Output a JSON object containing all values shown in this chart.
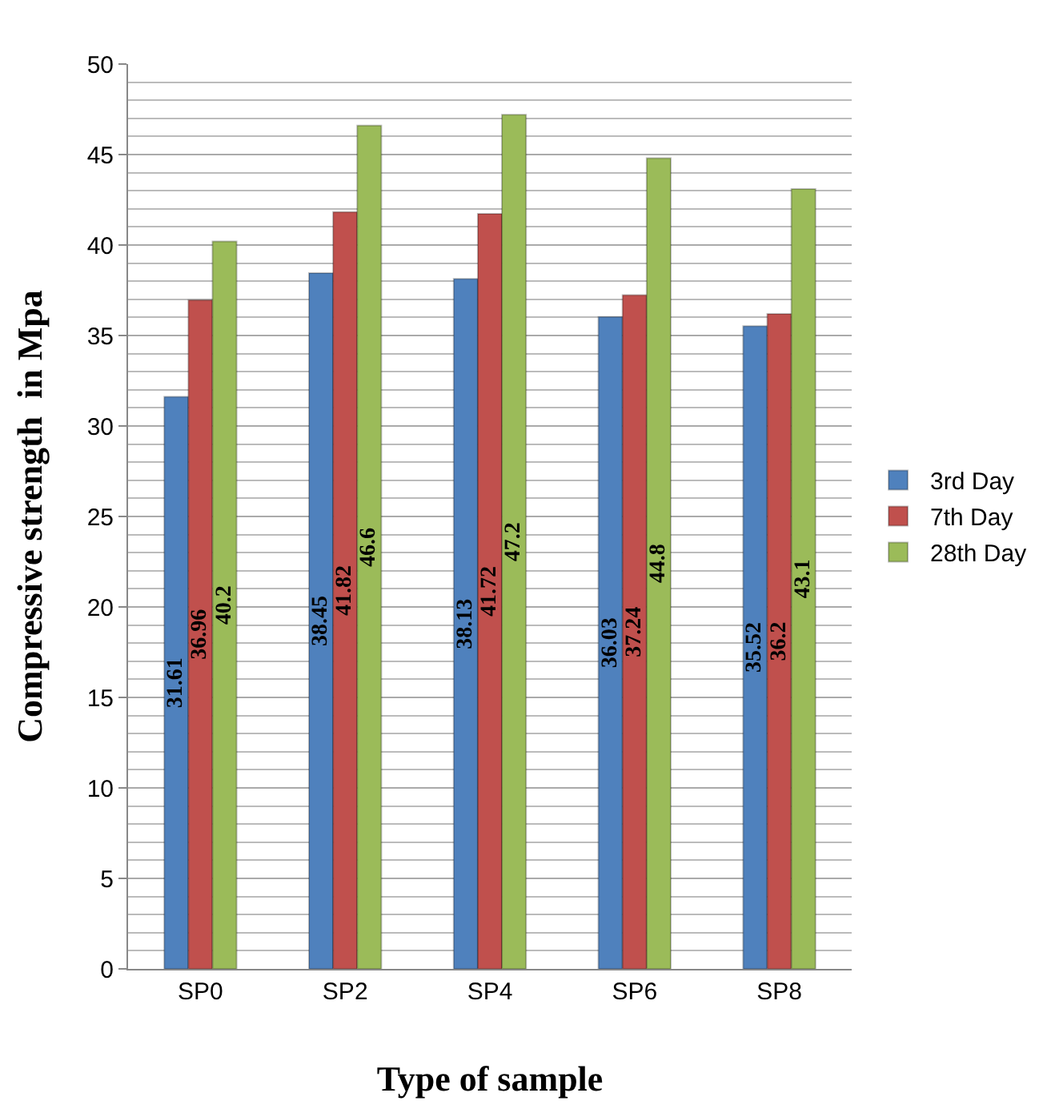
{
  "chart_data": {
    "type": "bar",
    "xlabel": "Type of sample",
    "ylabel": "Compressive strength  in Mpa",
    "categories": [
      "SP0",
      "SP2",
      "SP4",
      "SP6",
      "SP8"
    ],
    "series": [
      {
        "name": "3rd Day",
        "color": "#4f81bd",
        "values": [
          31.61,
          38.45,
          38.13,
          36.03,
          35.52
        ]
      },
      {
        "name": "7th Day",
        "color": "#c0504d",
        "values": [
          36.96,
          41.82,
          41.72,
          37.24,
          36.2
        ]
      },
      {
        "name": "28th Day",
        "color": "#9bbb59",
        "values": [
          40.2,
          46.6,
          47.2,
          44.8,
          43.1
        ]
      }
    ],
    "ylim": [
      0,
      50
    ],
    "yticks": [
      0,
      5,
      10,
      15,
      20,
      25,
      30,
      35,
      40,
      45,
      50
    ],
    "grid": true,
    "legend": "right",
    "data_labels": true
  }
}
